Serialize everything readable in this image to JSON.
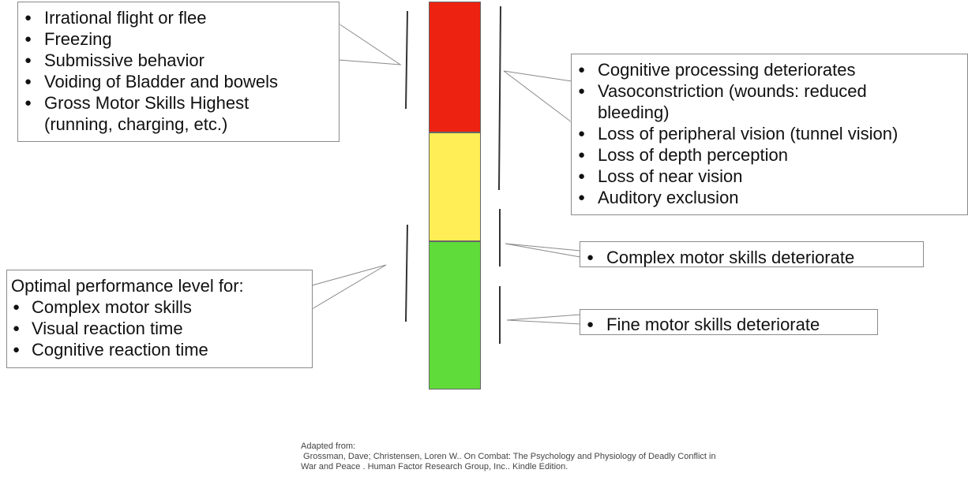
{
  "callouts": {
    "red_left": {
      "items": [
        "Irrational flight or flee",
        "Freezing",
        "Submissive behavior",
        "Voiding of Bladder and bowels",
        "Gross Motor Skills Highest",
        "(running, charging, etc.)"
      ]
    },
    "red_right": {
      "items": [
        "Cognitive processing deteriorates",
        "Vasoconstriction (wounds: reduced",
        "bleeding)",
        "Loss of peripheral vision (tunnel vision)",
        "Loss of depth perception",
        "Loss of near vision",
        "Auditory exclusion"
      ]
    },
    "yellow_right": {
      "items": [
        "Complex motor skills deteriorate"
      ]
    },
    "green_right": {
      "items": [
        "Fine  motor skills deteriorate"
      ]
    },
    "green_left": {
      "heading": "Optimal performance level for:",
      "items": [
        "Complex motor skills",
        "Visual reaction time",
        "Cognitive reaction time"
      ]
    }
  },
  "bar_colors": {
    "red": "#ee2211",
    "yellow": "#ffee55",
    "green": "#5fdc3a"
  },
  "citation": {
    "line1": "Adapted from:",
    "line2": " Grossman, Dave; Christensen, Loren W.. On Combat: The Psychology and Physiology of Deadly Conflict in",
    "line3": "War and Peace . Human Factor Research Group, Inc.. Kindle Edition."
  }
}
